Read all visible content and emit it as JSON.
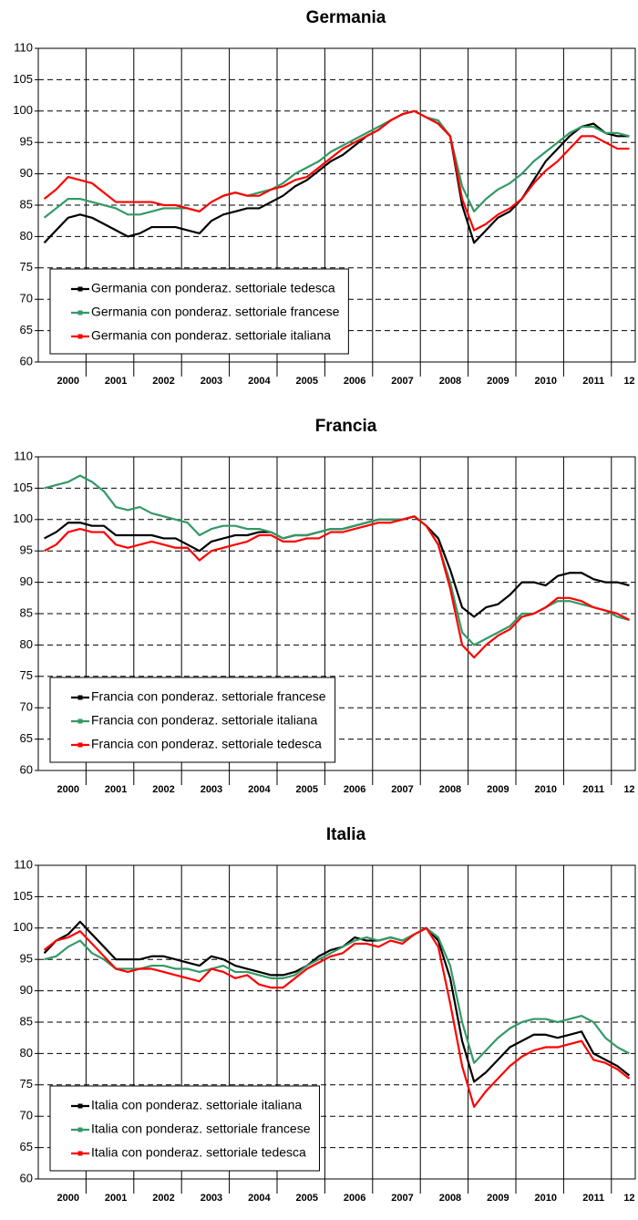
{
  "chart_data": [
    {
      "type": "line",
      "title": "Germania",
      "categories": [
        null,
        null,
        "2000",
        null,
        null,
        null,
        "2001",
        null,
        null,
        null,
        "2002",
        null,
        null,
        null,
        "2003",
        null,
        null,
        null,
        "2004",
        null,
        null,
        null,
        "2005",
        null,
        null,
        null,
        "2006",
        null,
        null,
        null,
        "2007",
        null,
        null,
        null,
        "2008",
        null,
        null,
        null,
        "2009",
        null,
        null,
        null,
        "2010",
        null,
        null,
        null,
        "2011",
        null,
        null,
        "12"
      ],
      "ylim": [
        60,
        110
      ],
      "yticks": [
        60,
        65,
        70,
        75,
        80,
        85,
        90,
        95,
        100,
        105,
        110
      ],
      "grid": true,
      "legend": "lower left",
      "series": [
        {
          "name": "Germania con ponderaz. settoriale tedesca",
          "color": "#000000",
          "values": [
            79,
            81,
            83,
            83.5,
            83,
            82,
            81,
            80,
            80.5,
            81.5,
            81.5,
            81.5,
            81,
            80.5,
            82.5,
            83.5,
            84,
            84.5,
            84.5,
            85.5,
            86.5,
            88,
            89,
            90.5,
            92,
            93,
            94.5,
            96,
            97,
            98.5,
            99.5,
            100,
            99,
            98,
            96,
            85,
            79,
            81,
            83,
            84,
            86,
            89,
            92,
            94,
            96,
            97.5,
            98,
            96.5,
            96,
            96
          ]
        },
        {
          "name": "Germania con ponderaz. settoriale francese",
          "color": "#339966",
          "values": [
            83,
            84.5,
            86,
            86,
            85.5,
            85,
            84.5,
            83.5,
            83.5,
            84,
            84.5,
            84.5,
            84.5,
            84,
            85.5,
            86.5,
            87,
            86.5,
            87,
            87.5,
            88.5,
            90,
            91,
            92,
            93.5,
            94.5,
            95.5,
            96.5,
            97.5,
            98.5,
            99.5,
            100,
            99,
            98.5,
            96,
            88,
            84,
            86,
            87.5,
            88.5,
            90,
            92,
            93.5,
            95,
            96.5,
            97.5,
            97.5,
            96.5,
            96.5,
            96
          ]
        },
        {
          "name": "Germania con ponderaz. settoriale italiana",
          "color": "#ff0000",
          "values": [
            86,
            87.5,
            89.5,
            89,
            88.5,
            87,
            85.5,
            85.5,
            85.5,
            85.5,
            85,
            85,
            84.5,
            84,
            85.5,
            86.5,
            87,
            86.5,
            86.5,
            87.5,
            88,
            89,
            89.5,
            91,
            92.5,
            94,
            95,
            96,
            97,
            98.5,
            99.5,
            100,
            99,
            98,
            96,
            86,
            81,
            82,
            83.5,
            84.5,
            86,
            88.5,
            90.5,
            92,
            94,
            96,
            96,
            95,
            94,
            94
          ]
        }
      ]
    },
    {
      "type": "line",
      "title": "Francia",
      "categories": [
        null,
        null,
        "2000",
        null,
        null,
        null,
        "2001",
        null,
        null,
        null,
        "2002",
        null,
        null,
        null,
        "2003",
        null,
        null,
        null,
        "2004",
        null,
        null,
        null,
        "2005",
        null,
        null,
        null,
        "2006",
        null,
        null,
        null,
        "2007",
        null,
        null,
        null,
        "2008",
        null,
        null,
        null,
        "2009",
        null,
        null,
        null,
        "2010",
        null,
        null,
        null,
        "2011",
        null,
        null,
        "12"
      ],
      "ylim": [
        60,
        110
      ],
      "yticks": [
        60,
        65,
        70,
        75,
        80,
        85,
        90,
        95,
        100,
        105,
        110
      ],
      "grid": true,
      "legend": "lower left",
      "series": [
        {
          "name": "Francia con ponderaz. settoriale francese",
          "color": "#000000",
          "values": [
            97,
            98,
            99.5,
            99.5,
            99,
            99,
            97.5,
            97.5,
            97.5,
            97.5,
            97,
            97,
            96,
            95,
            96.5,
            97,
            97.5,
            97.5,
            98,
            98,
            97,
            97.5,
            97.5,
            98,
            98.5,
            98.5,
            99,
            99.5,
            100,
            100,
            100,
            100.5,
            99,
            97,
            92,
            86,
            84.5,
            86,
            86.5,
            88,
            90,
            90,
            89.5,
            91,
            91.5,
            91.5,
            90.5,
            90,
            90,
            89.5
          ]
        },
        {
          "name": "Francia con ponderaz. settoriale italiana",
          "color": "#339966",
          "values": [
            105,
            105.5,
            106,
            107,
            106,
            104.5,
            102,
            101.5,
            102,
            101,
            100.5,
            100,
            99.5,
            97.5,
            98.5,
            99,
            99,
            98.5,
            98.5,
            98,
            97,
            97.5,
            97.5,
            98,
            98.5,
            98.5,
            99,
            99.5,
            100,
            100,
            100,
            100.5,
            99,
            96,
            90,
            82,
            80,
            81,
            82,
            83,
            85,
            85,
            86,
            87,
            87,
            86.5,
            86,
            85.5,
            84.5,
            84
          ]
        },
        {
          "name": "Francia con ponderaz. settoriale tedesca",
          "color": "#ff0000",
          "values": [
            95,
            96,
            98,
            98.5,
            98,
            98,
            96,
            95.5,
            96,
            96.5,
            96,
            95.5,
            95.5,
            93.5,
            95,
            95.5,
            96,
            96.5,
            97.5,
            97.5,
            96.5,
            96.5,
            97,
            97,
            98,
            98,
            98.5,
            99,
            99.5,
            99.5,
            100,
            100.5,
            99,
            96,
            89,
            80,
            78,
            80,
            81.5,
            82.5,
            84.5,
            85,
            86,
            87.5,
            87.5,
            87,
            86,
            85.5,
            85,
            84
          ]
        }
      ]
    },
    {
      "type": "line",
      "title": "Italia",
      "categories": [
        null,
        null,
        "2000",
        null,
        null,
        null,
        "2001",
        null,
        null,
        null,
        "2002",
        null,
        null,
        null,
        "2003",
        null,
        null,
        null,
        "2004",
        null,
        null,
        null,
        "2005",
        null,
        null,
        null,
        "2006",
        null,
        null,
        null,
        "2007",
        null,
        null,
        null,
        "2008",
        null,
        null,
        null,
        "2009",
        null,
        null,
        null,
        "2010",
        null,
        null,
        null,
        "2011",
        null,
        null,
        "12"
      ],
      "ylim": [
        60,
        110
      ],
      "yticks": [
        60,
        65,
        70,
        75,
        80,
        85,
        90,
        95,
        100,
        105,
        110
      ],
      "grid": true,
      "legend": "lower left",
      "series": [
        {
          "name": "Italia con ponderaz. settoriale italiana",
          "color": "#000000",
          "values": [
            96,
            98,
            99,
            101,
            99,
            97,
            95,
            95,
            95,
            95.5,
            95.5,
            95,
            94.5,
            94,
            95.5,
            95,
            94,
            93.5,
            93,
            92.5,
            92.5,
            93,
            94,
            95.5,
            96.5,
            97,
            98.5,
            98,
            98,
            98.5,
            98,
            99,
            100,
            98,
            92,
            82,
            75.5,
            77,
            79,
            81,
            82,
            83,
            83,
            82.5,
            83,
            83.5,
            80,
            79,
            78,
            76.5
          ]
        },
        {
          "name": "Italia con ponderaz. settoriale francese",
          "color": "#339966",
          "values": [
            95,
            95.5,
            97,
            98,
            96,
            95,
            93.5,
            93.5,
            93.5,
            94,
            94,
            93.5,
            93.5,
            93,
            93.5,
            94,
            93,
            93,
            92.5,
            92,
            92,
            92.5,
            94,
            95,
            96,
            97,
            98,
            98.5,
            98,
            98.5,
            98,
            99,
            100,
            98.5,
            94,
            85,
            78.5,
            80.5,
            82.5,
            84,
            85,
            85.5,
            85.5,
            85,
            85.5,
            86,
            85,
            82.5,
            81,
            80
          ]
        },
        {
          "name": "Italia con ponderaz. settoriale tedesca",
          "color": "#ff0000",
          "values": [
            96.5,
            98,
            98.5,
            99.5,
            97.5,
            95.5,
            93.5,
            93,
            93.5,
            93.5,
            93,
            92.5,
            92,
            91.5,
            93.5,
            93,
            92,
            92.5,
            91,
            90.5,
            90.5,
            92,
            93.5,
            94.5,
            95.5,
            96,
            97.5,
            97.5,
            97,
            98,
            97.5,
            99,
            100,
            97,
            88,
            78,
            71.5,
            74,
            76,
            78,
            79.5,
            80.5,
            81,
            81,
            81.5,
            82,
            79,
            78.5,
            77.5,
            76
          ]
        }
      ]
    }
  ]
}
